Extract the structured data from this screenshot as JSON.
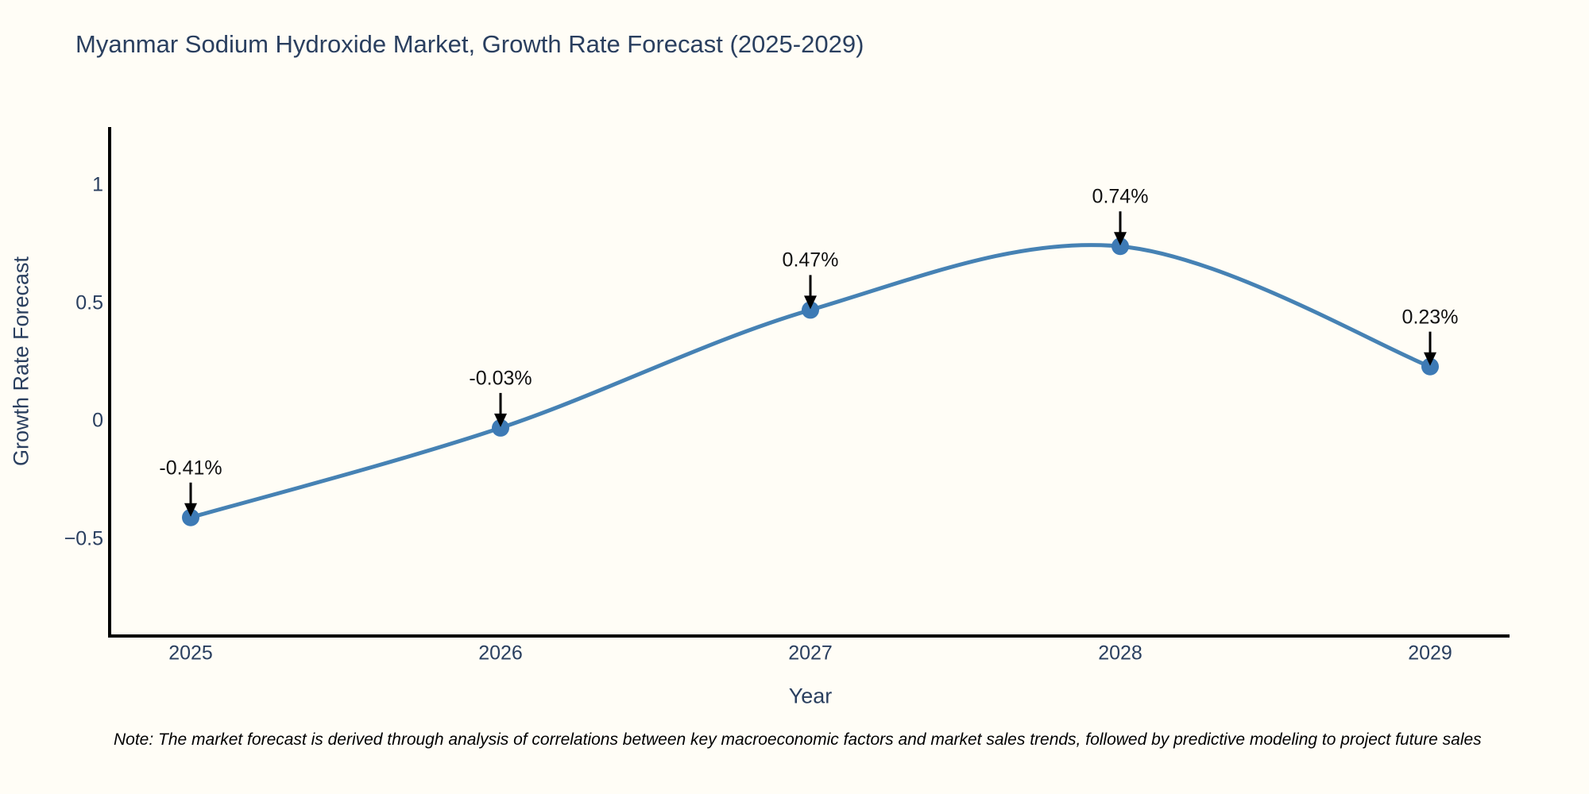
{
  "page": {
    "background": "#fffdf6"
  },
  "chart_data": {
    "type": "line",
    "title": "Myanmar Sodium Hydroxide Market, Growth Rate Forecast (2025-2029)",
    "xlabel": "Year",
    "ylabel": "Growth Rate Forecast",
    "categories": [
      2025,
      2026,
      2027,
      2028,
      2029
    ],
    "x_tick_labels": [
      "2025",
      "2026",
      "2027",
      "2028",
      "2029"
    ],
    "series": [
      {
        "name": "Growth Rate Forecast",
        "values": [
          -0.41,
          -0.03,
          0.47,
          0.74,
          0.23
        ]
      }
    ],
    "point_labels": [
      "-0.41%",
      "-0.03%",
      "0.47%",
      "0.74%",
      "0.23%"
    ],
    "y_ticks": [
      {
        "value": 1,
        "label": "1"
      },
      {
        "value": 0.5,
        "label": "0.5"
      },
      {
        "value": 0,
        "label": "0"
      },
      {
        "value": -0.5,
        "label": "−0.5"
      }
    ],
    "ylim": [
      -0.91,
      1.26
    ],
    "grid": false,
    "legend_position": "none",
    "line_shape": "spline",
    "annotations_style": "value label with downward arrow to each point",
    "colors": {
      "line": "#4682b4",
      "marker": "#3d7ab5",
      "arrow": "#000000",
      "axis": "#000000",
      "title": "#2a3f5f",
      "tick": "#2a3f5f",
      "annotation": "#111111"
    }
  },
  "footer": {
    "note": "Note: The market forecast is derived through analysis of correlations between key macroeconomic factors and market sales trends, followed by predictive modeling to project future sales"
  }
}
